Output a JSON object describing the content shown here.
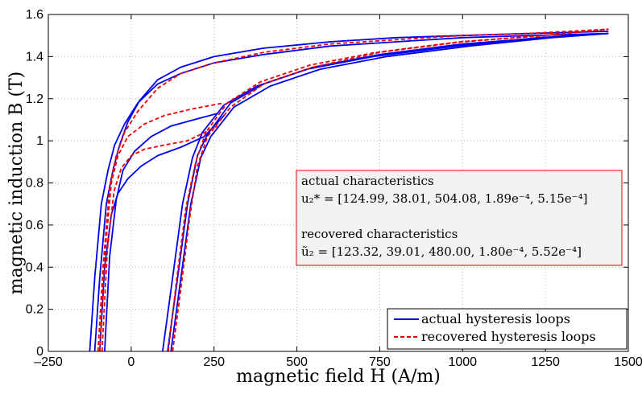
{
  "chart_data": {
    "type": "line",
    "xlabel": "magnetic field H (A/m)",
    "ylabel": "magnetic induction B (T)",
    "xlim": [
      -250,
      1500
    ],
    "ylim": [
      0,
      1.6
    ],
    "xticks": [
      -250,
      0,
      250,
      500,
      750,
      1000,
      1250,
      1500
    ],
    "xtick_labels": [
      "–250",
      "0",
      "250",
      "500",
      "750",
      "1000",
      "1250",
      "1500"
    ],
    "yticks": [
      0,
      0.2,
      0.4,
      0.6,
      0.8,
      1.0,
      1.2,
      1.4,
      1.6
    ],
    "ytick_labels": [
      "0",
      "0.2",
      "0.4",
      "0.6",
      "0.8",
      "1",
      "1.2",
      "1.4",
      "1.6"
    ],
    "grid": true,
    "legend_position": "bottom-right",
    "series": [
      {
        "name": "actual hysteresis loops",
        "color": "#0000ee",
        "style": "solid",
        "curves": [
          {
            "x": [
              -125,
              -110,
              -90,
              -70,
              -50,
              -20,
              20,
              80,
              150,
              250,
              400,
              600,
              800,
              1000,
              1200,
              1440
            ],
            "y": [
              0,
              0.35,
              0.7,
              0.86,
              0.98,
              1.08,
              1.18,
              1.27,
              1.32,
              1.37,
              1.41,
              1.45,
              1.47,
              1.49,
              1.5,
              1.51
            ]
          },
          {
            "x": [
              -110,
              -95,
              -75,
              -55,
              -35,
              -10,
              25,
              80,
              150,
              250,
              400,
              600,
              800,
              1000,
              1200,
              1440
            ],
            "y": [
              0,
              0.35,
              0.7,
              0.86,
              0.98,
              1.09,
              1.19,
              1.29,
              1.35,
              1.4,
              1.44,
              1.47,
              1.49,
              1.5,
              1.51,
              1.52
            ]
          },
          {
            "x": [
              -95,
              -80,
              -60,
              -40,
              -10,
              30,
              80,
              150,
              220,
              280
            ],
            "y": [
              0,
              0.4,
              0.65,
              0.75,
              0.82,
              0.88,
              0.93,
              0.97,
              1.02,
              1.12
            ]
          },
          {
            "x": [
              -80,
              -65,
              -45,
              -25,
              10,
              60,
              120,
              190,
              260
            ],
            "y": [
              0,
              0.45,
              0.72,
              0.86,
              0.95,
              1.02,
              1.07,
              1.1,
              1.13
            ]
          },
          {
            "x": [
              110,
              140,
              170,
              200,
              230,
              300,
              400,
              550,
              750,
              1000,
              1250,
              1440
            ],
            "y": [
              0,
              0.35,
              0.7,
              0.93,
              1.03,
              1.18,
              1.27,
              1.35,
              1.41,
              1.46,
              1.49,
              1.51
            ]
          },
          {
            "x": [
              95,
              125,
              155,
              185,
              215,
              280,
              380,
              530,
              730,
              980,
              1230,
              1440
            ],
            "y": [
              0,
              0.35,
              0.7,
              0.92,
              1.04,
              1.17,
              1.26,
              1.34,
              1.4,
              1.45,
              1.49,
              1.51
            ]
          },
          {
            "x": [
              120,
              150,
              180,
              210,
              240,
              310,
              420,
              570,
              770,
              1020,
              1270,
              1440
            ],
            "y": [
              0,
              0.35,
              0.7,
              0.92,
              1.02,
              1.16,
              1.26,
              1.34,
              1.4,
              1.45,
              1.49,
              1.51
            ]
          }
        ]
      },
      {
        "name": "recovered hysteresis loops",
        "color": "#ee0000",
        "style": "dashed",
        "curves": [
          {
            "x": [
              -100,
              -85,
              -65,
              -45,
              -20,
              20,
              80,
              150,
              250,
              400,
              600,
              800,
              1000,
              1200,
              1440
            ],
            "y": [
              0,
              0.4,
              0.78,
              0.93,
              1.04,
              1.14,
              1.25,
              1.32,
              1.37,
              1.42,
              1.46,
              1.48,
              1.5,
              1.51,
              1.53
            ]
          },
          {
            "x": [
              -88,
              -72,
              -52,
              -30,
              0,
              40,
              100,
              170,
              260
            ],
            "y": [
              0,
              0.48,
              0.76,
              0.87,
              0.93,
              0.96,
              0.98,
              1.0,
              1.07
            ]
          },
          {
            "x": [
              -95,
              -80,
              -60,
              -40,
              -10,
              40,
              100,
              180,
              280
            ],
            "y": [
              0,
              0.45,
              0.8,
              0.93,
              1.02,
              1.08,
              1.12,
              1.15,
              1.18
            ]
          },
          {
            "x": [
              125,
              150,
              175,
              200,
              230,
              300,
              400,
              550,
              750,
              1000,
              1250,
              1440
            ],
            "y": [
              0,
              0.3,
              0.62,
              0.88,
              1.02,
              1.16,
              1.27,
              1.35,
              1.42,
              1.47,
              1.5,
              1.53
            ]
          },
          {
            "x": [
              112,
              138,
              165,
              195,
              225,
              290,
              390,
              540,
              740,
              990,
              1240,
              1440
            ],
            "y": [
              0,
              0.35,
              0.68,
              0.9,
              1.04,
              1.18,
              1.28,
              1.36,
              1.42,
              1.47,
              1.5,
              1.53
            ]
          }
        ]
      }
    ],
    "annotation": {
      "line1": "actual characteristics",
      "line2": "u₂* = [124.99, 38.01, 504.08, 1.89e⁻⁴, 5.15e⁻⁴]",
      "line3": "recovered characteristics",
      "line4": "ũ₂ = [123.32, 39.01, 480.00, 1.80e⁻⁴, 5.52e⁻⁴]",
      "border_color": "#ee0000",
      "background": "#f2f2f2"
    }
  }
}
